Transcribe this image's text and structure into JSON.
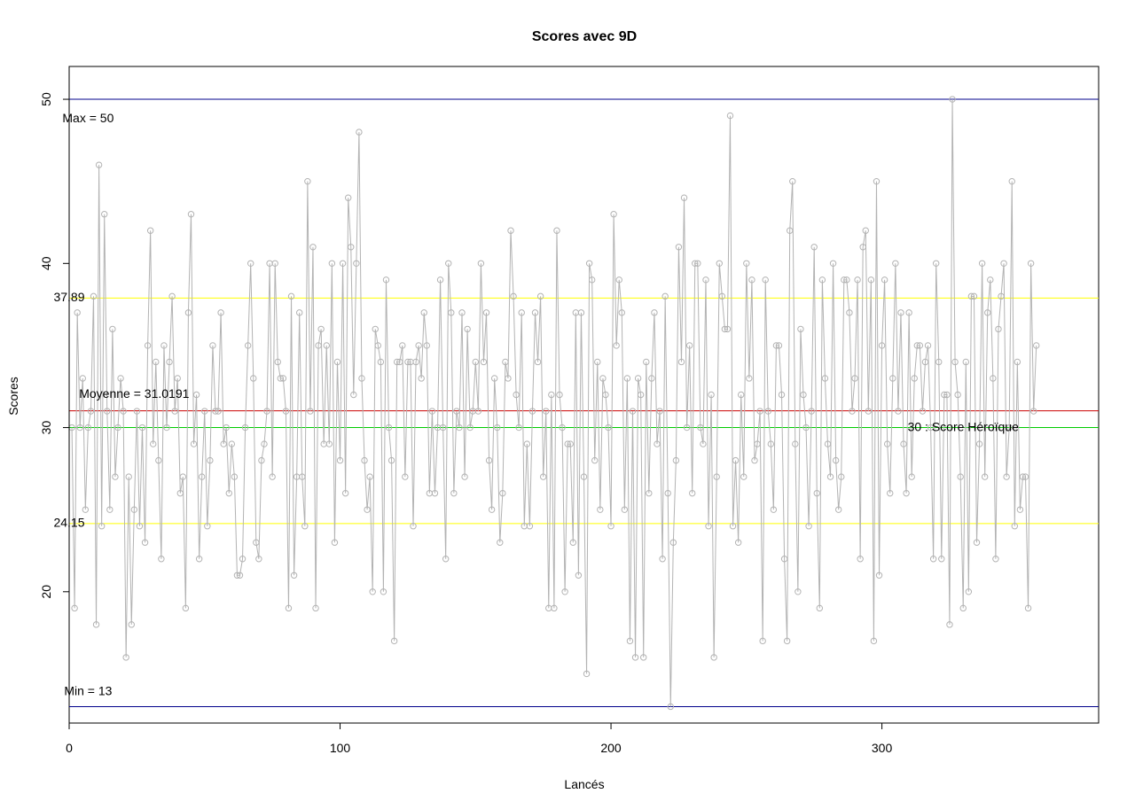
{
  "chart_data": {
    "type": "line",
    "title": "Scores avec 9D",
    "xlabel": "Lancés",
    "ylabel": "Scores",
    "xlim": [
      0,
      380
    ],
    "ylim": [
      12.0,
      52.0
    ],
    "x_ticks": [
      0,
      100,
      200,
      300
    ],
    "y_ticks": [
      20,
      30,
      40,
      50
    ],
    "grid": false,
    "colors": {
      "series": "#b3b3b3",
      "max_min": "#00008b",
      "moyenne": "#cc0000",
      "heroique": "#00cc00",
      "ecart": "#ffff00"
    },
    "hlines": [
      {
        "name": "max",
        "y": 50,
        "label": "Max =  50",
        "label_x": 7,
        "label_y": 48.8
      },
      {
        "name": "min",
        "y": 13,
        "label": "Min =  13",
        "label_x": 7,
        "label_y": 13.9
      },
      {
        "name": "moyenne",
        "y": 31.0191,
        "label": "Moyenne =  31.0191",
        "label_x": 24,
        "label_y": 32.0
      },
      {
        "name": "heroique",
        "y": 30,
        "label": "30 : Score Héroïque",
        "label_x": 330,
        "label_y": 30.0
      },
      {
        "name": "upper",
        "y": 37.89,
        "label": "37.89",
        "label_x": 0,
        "label_y": 37.89
      },
      {
        "name": "lower",
        "y": 24.15,
        "label": "24.15",
        "label_x": 0,
        "label_y": 24.15
      }
    ],
    "series": [
      {
        "values": [
          30,
          19,
          37,
          30,
          33,
          25,
          30,
          31,
          38,
          18,
          46,
          24,
          43,
          31,
          25,
          36,
          27,
          30,
          33,
          31,
          16,
          27,
          18,
          25,
          31,
          24,
          30,
          23,
          35,
          42,
          29,
          34,
          28,
          22,
          35,
          30,
          34,
          38,
          31,
          33,
          26,
          27,
          19,
          37,
          43,
          29,
          32,
          22,
          27,
          31,
          24,
          28,
          35,
          31,
          31,
          37,
          29,
          30,
          26,
          29,
          27,
          21,
          21,
          22,
          30,
          35,
          40,
          33,
          23,
          22,
          28,
          29,
          31,
          40,
          27,
          40,
          34,
          33,
          33,
          31,
          19,
          38,
          21,
          27,
          37,
          27,
          24,
          45,
          31,
          41,
          19,
          35,
          36,
          29,
          35,
          29,
          40,
          23,
          34,
          28,
          40,
          26,
          44,
          41,
          32,
          40,
          48,
          33,
          28,
          25,
          27,
          20,
          36,
          35,
          34,
          20,
          39,
          30,
          28,
          17,
          34,
          34,
          35,
          27,
          34,
          34,
          24,
          34,
          35,
          33,
          37,
          35,
          26,
          31,
          26,
          30,
          39,
          30,
          22,
          40,
          37,
          26,
          31,
          30,
          37,
          27,
          36,
          30,
          31,
          34,
          31,
          40,
          34,
          37,
          28,
          25,
          33,
          30,
          23,
          26,
          34,
          33,
          42,
          38,
          32,
          30,
          37,
          24,
          29,
          24,
          31,
          37,
          34,
          38,
          27,
          31,
          19,
          32,
          19,
          42,
          32,
          30,
          20,
          29,
          29,
          23,
          37,
          21,
          37,
          27,
          15,
          40,
          39,
          28,
          34,
          25,
          33,
          32,
          30,
          24,
          43,
          35,
          39,
          37,
          25,
          33,
          17,
          31,
          16,
          33,
          32,
          16,
          34,
          26,
          33,
          37,
          29,
          31,
          22,
          38,
          26,
          13,
          23,
          28,
          41,
          34,
          44,
          30,
          35,
          26,
          40,
          40,
          30,
          29,
          39,
          24,
          32,
          16,
          27,
          40,
          38,
          36,
          36,
          49,
          24,
          28,
          23,
          32,
          27,
          40,
          33,
          39,
          28,
          29,
          31,
          17,
          39,
          31,
          29,
          25,
          35,
          35,
          32,
          22,
          17,
          42,
          45,
          29,
          20,
          36,
          32,
          30,
          24,
          31,
          41,
          26,
          19,
          39,
          33,
          29,
          27,
          40,
          28,
          25,
          27,
          39,
          39,
          37,
          31,
          33,
          39,
          22,
          41,
          42,
          31,
          39,
          17,
          45,
          21,
          35,
          39,
          29,
          26,
          33,
          40,
          31,
          37,
          29,
          26,
          37,
          27,
          33,
          35,
          35,
          31,
          34,
          35,
          30,
          22,
          40,
          34,
          22,
          32,
          32,
          18,
          50,
          34,
          32,
          27,
          19,
          34,
          20,
          38,
          38,
          23,
          29,
          40,
          27,
          37,
          39,
          33,
          22,
          36,
          38,
          40,
          27,
          30,
          45,
          24,
          34,
          25,
          27,
          27,
          19,
          40,
          31,
          35
        ]
      }
    ]
  }
}
